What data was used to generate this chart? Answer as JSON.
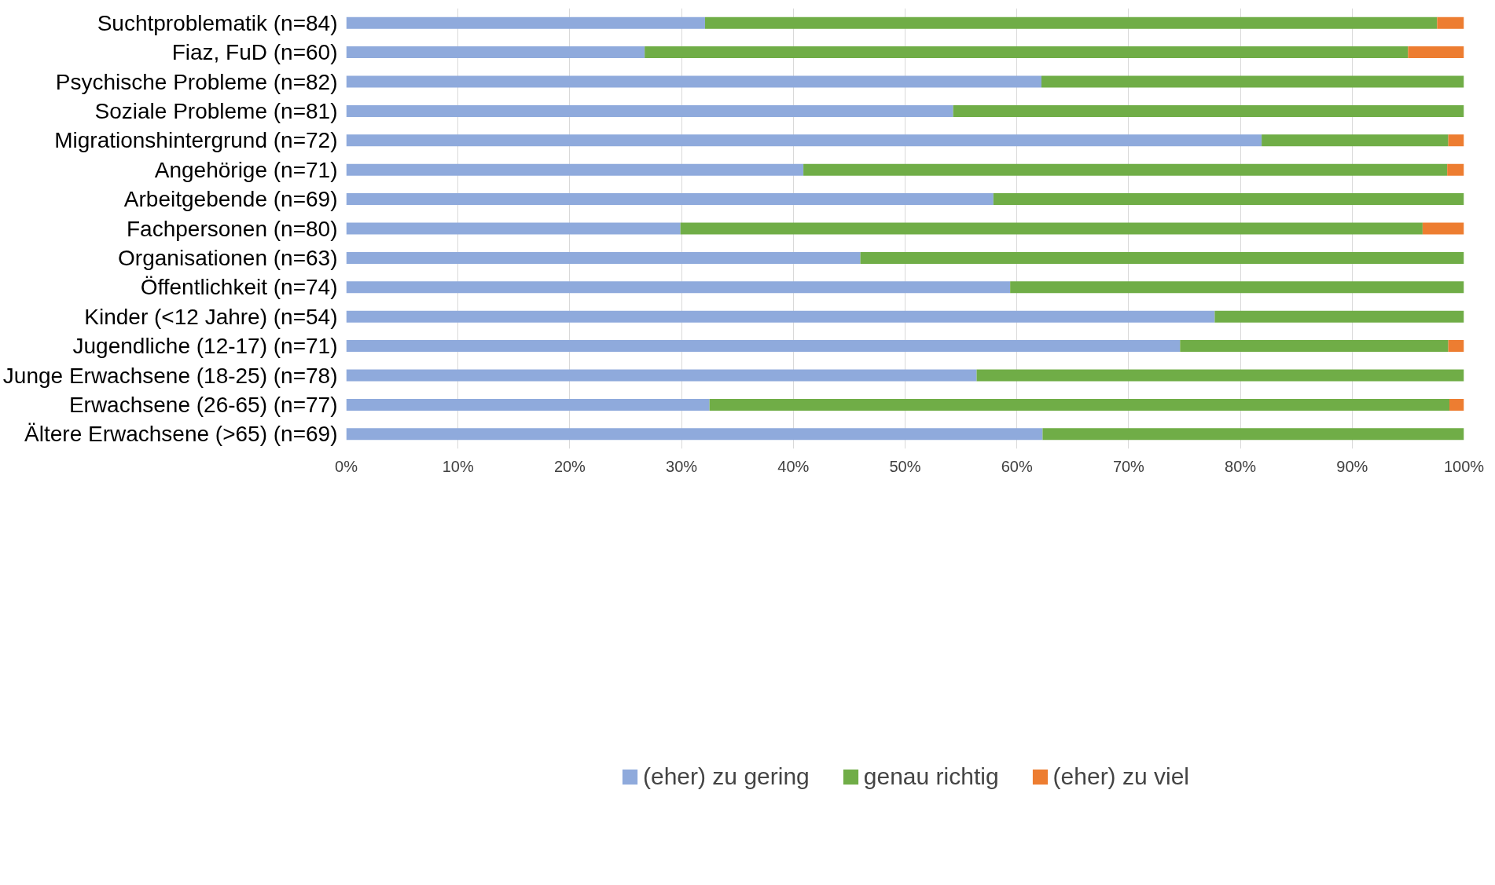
{
  "chart_data": {
    "type": "bar",
    "orientation": "horizontal",
    "stacked": true,
    "categories": [
      "Suchtproblematik (n=84)",
      "Fiaz, FuD (n=60)",
      "Psychische Probleme (n=82)",
      "Soziale Probleme (n=81)",
      "Migrationshintergrund (n=72)",
      "Angehörige (n=71)",
      "Arbeitgebende (n=69)",
      "Fachpersonen (n=80)",
      "Organisationen (n=63)",
      "Öffentlichkeit (n=74)",
      "Kinder (<12 Jahre) (n=54)",
      "Jugendliche (12-17) (n=71)",
      "Junge Erwachsene (18-25) (n=78)",
      "Erwachsene (26-65) (n=77)",
      "Ältere Erwachsene (>65) (n=69)"
    ],
    "series": [
      {
        "name": "(eher) zu gering",
        "color": "#8faadc",
        "values": [
          32.1,
          26.7,
          62.2,
          54.3,
          81.9,
          40.9,
          57.9,
          29.9,
          46.0,
          59.4,
          77.7,
          74.6,
          56.4,
          32.5,
          62.3
        ]
      },
      {
        "name": "genau richtig",
        "color": "#70ad47",
        "values": [
          65.5,
          68.3,
          37.8,
          45.7,
          16.7,
          57.6,
          42.1,
          66.4,
          54.0,
          40.6,
          22.3,
          24.0,
          43.6,
          66.2,
          37.7
        ]
      },
      {
        "name": "(eher) zu viel",
        "color": "#ed7d31",
        "values": [
          2.4,
          5.0,
          0,
          0,
          1.4,
          1.5,
          0,
          3.7,
          0,
          0,
          0,
          1.4,
          0,
          1.3,
          0
        ]
      }
    ],
    "xlim": [
      0,
      100
    ],
    "xticks": [
      {
        "value": 0,
        "label": "0%"
      },
      {
        "value": 10,
        "label": "10%"
      },
      {
        "value": 20,
        "label": "20%"
      },
      {
        "value": 30,
        "label": "30%"
      },
      {
        "value": 40,
        "label": "40%"
      },
      {
        "value": 50,
        "label": "50%"
      },
      {
        "value": 60,
        "label": "60%"
      },
      {
        "value": 70,
        "label": "70%"
      },
      {
        "value": 80,
        "label": "80%"
      },
      {
        "value": 90,
        "label": "90%"
      },
      {
        "value": 100,
        "label": "100%"
      }
    ],
    "grid": "x",
    "legend": "bottom"
  }
}
